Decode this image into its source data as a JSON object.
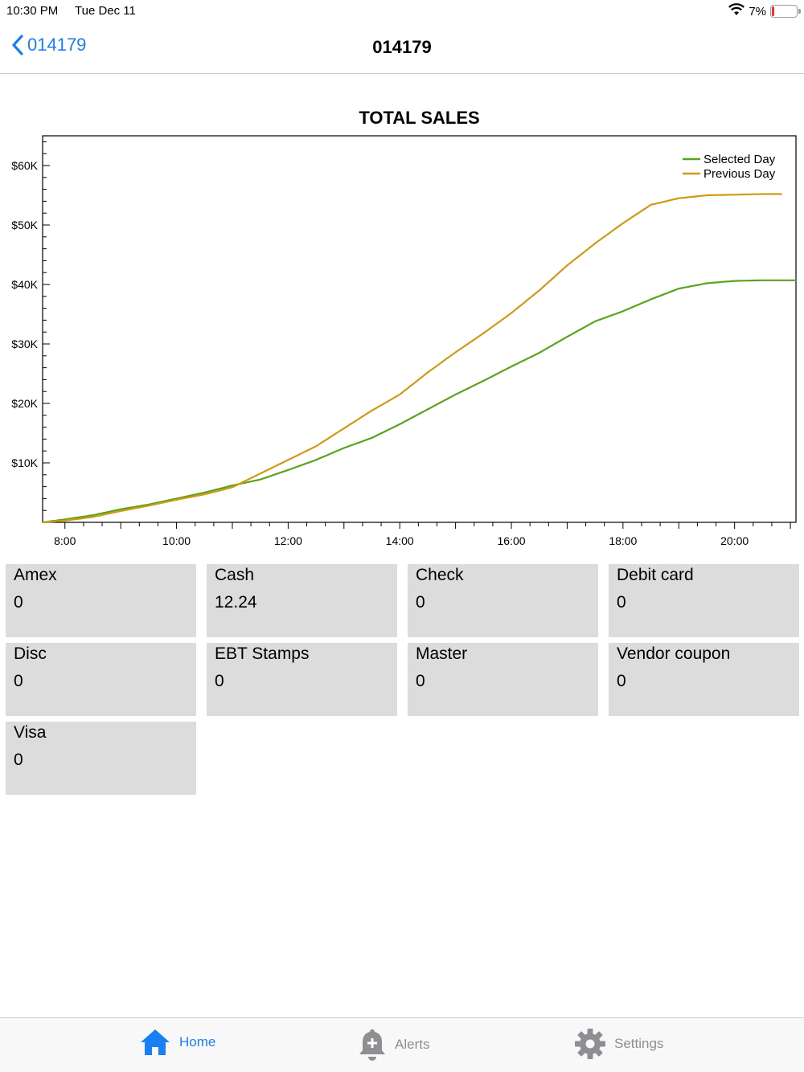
{
  "status_bar": {
    "time": "10:30 PM",
    "date": "Tue Dec 11",
    "battery_percent": "7%",
    "battery_level": 0.07
  },
  "nav": {
    "back_label": "014179",
    "title": "014179"
  },
  "chart_data": {
    "type": "line",
    "title": "TOTAL SALES",
    "xlabel": "",
    "ylabel": "",
    "x_ticks": [
      "8:00",
      "10:00",
      "12:00",
      "14:00",
      "16:00",
      "18:00",
      "20:00"
    ],
    "y_ticks": [
      "$10K",
      "$20K",
      "$30K",
      "$40K",
      "$50K",
      "$60K"
    ],
    "xlim": [
      7.6,
      21.1
    ],
    "ylim": [
      0,
      65000
    ],
    "legend_position": "top-right",
    "series": [
      {
        "name": "Selected Day",
        "color": "#5aa31c",
        "x": [
          7.6,
          8.0,
          8.5,
          9.0,
          9.5,
          10.0,
          10.5,
          11.0,
          11.5,
          12.0,
          12.5,
          13.0,
          13.5,
          14.0,
          14.5,
          15.0,
          15.5,
          16.0,
          16.5,
          17.0,
          17.5,
          18.0,
          18.5,
          19.0,
          19.5,
          20.0,
          20.5,
          21.1
        ],
        "values": [
          0,
          500,
          1200,
          2200,
          3000,
          4000,
          5000,
          6200,
          7200,
          8800,
          10500,
          12500,
          14200,
          16500,
          19000,
          21500,
          23800,
          26200,
          28500,
          31200,
          33800,
          35500,
          37500,
          39300,
          40200,
          40600,
          40700,
          40700
        ]
      },
      {
        "name": "Previous Day",
        "color": "#d09a12",
        "x": [
          7.6,
          8.0,
          8.5,
          9.0,
          9.5,
          10.0,
          10.5,
          11.0,
          11.5,
          12.0,
          12.5,
          13.0,
          13.5,
          14.0,
          14.5,
          15.0,
          15.5,
          16.0,
          16.5,
          17.0,
          17.5,
          18.0,
          18.5,
          19.0,
          19.5,
          20.0,
          20.5,
          20.85
        ],
        "values": [
          0,
          300,
          900,
          1900,
          2800,
          3800,
          4700,
          5900,
          8200,
          10500,
          12800,
          15800,
          18800,
          21500,
          25200,
          28600,
          31800,
          35200,
          39000,
          43200,
          46900,
          50300,
          53400,
          54500,
          55000,
          55100,
          55200,
          55200
        ]
      }
    ]
  },
  "tiles": [
    {
      "label": "Amex",
      "value": "0"
    },
    {
      "label": "Cash",
      "value": "12.24"
    },
    {
      "label": "Check",
      "value": "0"
    },
    {
      "label": "Debit card",
      "value": "0"
    },
    {
      "label": "Disc",
      "value": "0"
    },
    {
      "label": "EBT Stamps",
      "value": "0"
    },
    {
      "label": "Master",
      "value": "0"
    },
    {
      "label": "Vendor coupon",
      "value": "0"
    },
    {
      "label": "Visa",
      "value": "0"
    }
  ],
  "tabs": [
    {
      "label": "Home",
      "icon": "home-icon",
      "active": true
    },
    {
      "label": "Alerts",
      "icon": "bell-plus-icon",
      "active": false
    },
    {
      "label": "Settings",
      "icon": "gear-icon",
      "active": false
    }
  ],
  "colors": {
    "accent": "#1a7ef5",
    "tile_bg": "#dcdcdc",
    "inactive_tab": "#8e8e93"
  }
}
